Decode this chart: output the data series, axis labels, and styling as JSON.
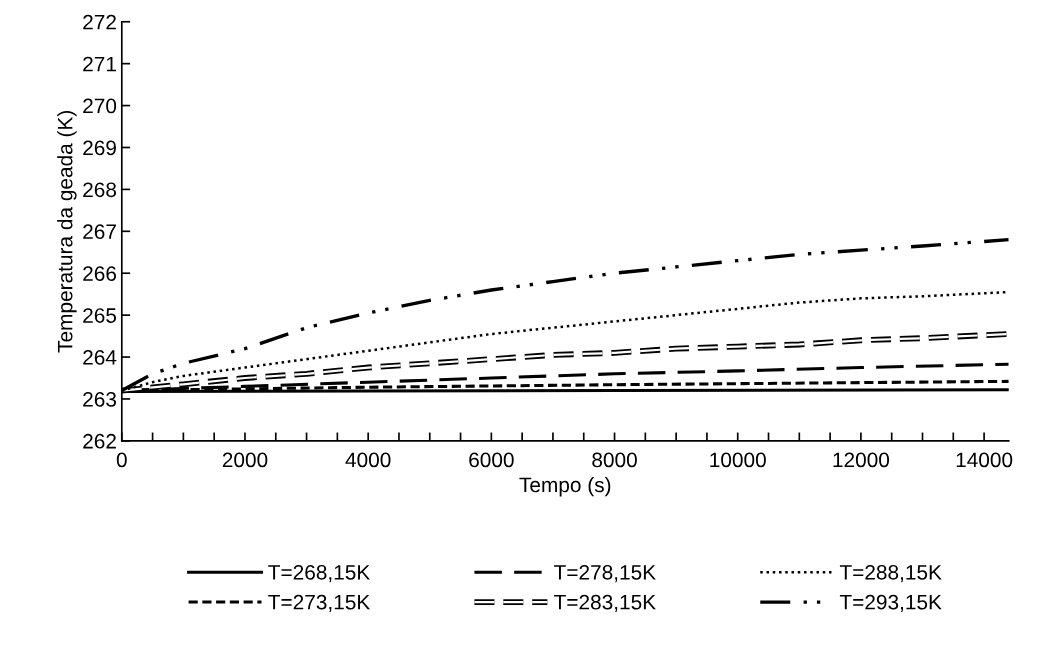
{
  "chart_data": {
    "type": "line",
    "xlabel": "Tempo (s)",
    "ylabel": "Temperatura da geada (K)",
    "xlim": [
      0,
      14400
    ],
    "ylim": [
      262,
      272
    ],
    "xticks": [
      0,
      {
        "value": 500,
        "label": null
      },
      {
        "value": 1000,
        "label": null
      },
      {
        "value": 1500,
        "label": null
      },
      2000,
      {
        "value": 2500,
        "label": null
      },
      {
        "value": 3000,
        "label": null
      },
      {
        "value": 3500,
        "label": null
      },
      4000,
      {
        "value": 4500,
        "label": null
      },
      {
        "value": 5000,
        "label": null
      },
      {
        "value": 5500,
        "label": null
      },
      6000,
      {
        "value": 6500,
        "label": null
      },
      {
        "value": 7000,
        "label": null
      },
      {
        "value": 7500,
        "label": null
      },
      8000,
      {
        "value": 8500,
        "label": null
      },
      {
        "value": 9000,
        "label": null
      },
      {
        "value": 9500,
        "label": null
      },
      10000,
      {
        "value": 10500,
        "label": null
      },
      {
        "value": 11000,
        "label": null
      },
      {
        "value": 11500,
        "label": null
      },
      12000,
      {
        "value": 12500,
        "label": null
      },
      {
        "value": 13000,
        "label": null
      },
      {
        "value": 13500,
        "label": null
      },
      14000
    ],
    "yticks": [
      262,
      263,
      264,
      265,
      266,
      267,
      268,
      269,
      270,
      271,
      272
    ],
    "grid": false,
    "legend": "bottom",
    "series": [
      {
        "name": "T=268,15K",
        "color": "#000000",
        "line_style": "solid",
        "x": [
          0,
          4000,
          8000,
          14400
        ],
        "values": [
          263.18,
          263.19,
          263.2,
          263.22
        ]
      },
      {
        "name": "T=273,15K",
        "color": "#000000",
        "line_style": "dashed",
        "x": [
          0,
          2000,
          4000,
          8000,
          14400
        ],
        "values": [
          263.2,
          263.24,
          263.28,
          263.34,
          263.42
        ]
      },
      {
        "name": "T=278,15K",
        "color": "#000000",
        "line_style": "longdash",
        "x": [
          0,
          2000,
          4000,
          6000,
          8000,
          10000,
          12000,
          14400
        ],
        "values": [
          263.2,
          263.3,
          263.4,
          263.5,
          263.6,
          263.67,
          263.75,
          263.83
        ]
      },
      {
        "name": "T=283,15K",
        "color": "#000000",
        "line_style": "double",
        "x": [
          0,
          1000,
          2000,
          3000,
          4000,
          5000,
          6000,
          7000,
          8000,
          9000,
          10000,
          11000,
          12000,
          13000,
          14400
        ],
        "values": [
          263.2,
          263.35,
          263.5,
          263.6,
          263.75,
          263.85,
          263.95,
          264.05,
          264.1,
          264.2,
          264.25,
          264.3,
          264.4,
          264.45,
          264.55
        ]
      },
      {
        "name": "T=288,15K",
        "color": "#000000",
        "line_style": "dotted",
        "x": [
          0,
          500,
          1000,
          2000,
          3000,
          4000,
          5000,
          6000,
          7000,
          8000,
          9000,
          10000,
          11000,
          12000,
          13000,
          14400
        ],
        "values": [
          263.2,
          263.4,
          263.55,
          263.75,
          263.95,
          264.15,
          264.35,
          264.55,
          264.7,
          264.85,
          265.0,
          265.15,
          265.3,
          265.4,
          265.45,
          265.55
        ]
      },
      {
        "name": "T=293,15K",
        "color": "#000000",
        "line_style": "dashdotdot",
        "x": [
          0,
          500,
          1000,
          2000,
          3000,
          4000,
          5000,
          6000,
          7000,
          8000,
          9000,
          10000,
          11000,
          12000,
          13000,
          14400
        ],
        "values": [
          263.2,
          263.6,
          263.85,
          264.2,
          264.7,
          265.05,
          265.35,
          265.6,
          265.8,
          266.0,
          266.15,
          266.3,
          266.45,
          266.55,
          266.65,
          266.8
        ]
      }
    ]
  }
}
